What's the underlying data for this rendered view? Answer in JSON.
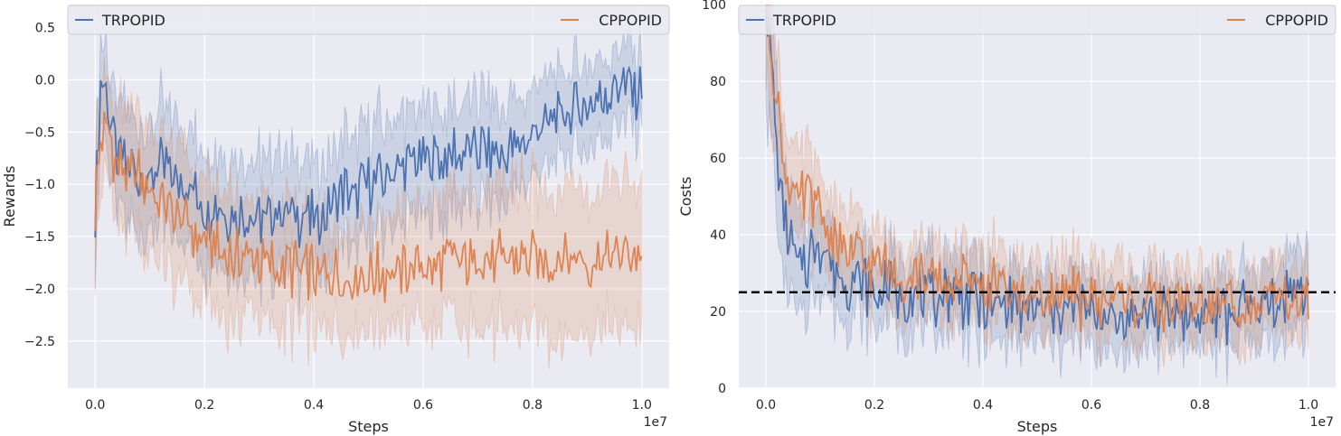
{
  "colors": {
    "trpopid": "#4c72b0",
    "cppopid": "#dd8452",
    "background": "#eaeaf2",
    "grid": "#ffffff",
    "threshold": "#000000"
  },
  "chart_data": [
    {
      "type": "line",
      "xlabel": "Steps",
      "ylabel": "Rewards",
      "x_offset_label": "1e7",
      "xlim": [
        -0.05,
        1.05
      ],
      "ylim": [
        -2.95,
        0.72
      ],
      "xticks": [
        0.0,
        0.2,
        0.4,
        0.6,
        0.8,
        1.0
      ],
      "xtick_labels": [
        "0.0",
        "0.2",
        "0.4",
        "0.6",
        "0.8",
        "1.0"
      ],
      "yticks": [
        -2.5,
        -2.0,
        -1.5,
        -1.0,
        -0.5,
        0.0,
        0.5
      ],
      "ytick_labels": [
        "−2.5",
        "−2.0",
        "−1.5",
        "−1.0",
        "−0.5",
        "0.0",
        "0.5"
      ],
      "grid": true,
      "legend_placement": "top, spanning",
      "x": [
        0.0,
        0.01,
        0.02,
        0.04,
        0.06,
        0.08,
        0.1,
        0.12,
        0.15,
        0.2,
        0.25,
        0.3,
        0.35,
        0.4,
        0.45,
        0.5,
        0.55,
        0.6,
        0.65,
        0.7,
        0.75,
        0.8,
        0.85,
        0.9,
        0.95,
        1.0
      ],
      "series": [
        {
          "name": "TRPOPID",
          "color": "#4c72b0",
          "values": [
            -1.35,
            -0.05,
            -0.15,
            -0.75,
            -0.85,
            -0.9,
            -1.0,
            -0.8,
            -0.95,
            -1.2,
            -1.3,
            -1.35,
            -1.3,
            -1.35,
            -1.1,
            -1.0,
            -0.85,
            -0.75,
            -0.7,
            -0.65,
            -0.7,
            -0.55,
            -0.35,
            -0.25,
            -0.05,
            -0.1
          ],
          "band": [
            0.55,
            0.4,
            0.45,
            0.5,
            0.5,
            0.5,
            0.5,
            0.55,
            0.55,
            0.55,
            0.5,
            0.55,
            0.55,
            0.5,
            0.5,
            0.55,
            0.5,
            0.5,
            0.5,
            0.5,
            0.45,
            0.45,
            0.4,
            0.4,
            0.35,
            0.35
          ]
        },
        {
          "name": "CPPOPID",
          "color": "#dd8452",
          "values": [
            -1.3,
            -0.5,
            -0.45,
            -0.8,
            -0.9,
            -0.95,
            -1.05,
            -1.15,
            -1.3,
            -1.55,
            -1.7,
            -1.75,
            -1.78,
            -1.85,
            -1.9,
            -1.88,
            -1.82,
            -1.8,
            -1.75,
            -1.72,
            -1.75,
            -1.72,
            -1.72,
            -1.7,
            -1.68,
            -1.65
          ],
          "band": [
            0.6,
            0.45,
            0.45,
            0.5,
            0.55,
            0.6,
            0.6,
            0.6,
            0.65,
            0.6,
            0.6,
            0.55,
            0.55,
            0.5,
            0.5,
            0.5,
            0.55,
            0.55,
            0.6,
            0.65,
            0.7,
            0.7,
            0.7,
            0.7,
            0.7,
            0.7
          ]
        }
      ]
    },
    {
      "type": "line",
      "xlabel": "Steps",
      "ylabel": "Costs",
      "x_offset_label": "1e7",
      "xlim": [
        -0.05,
        1.05
      ],
      "ylim": [
        0,
        100
      ],
      "xticks": [
        0.0,
        0.2,
        0.4,
        0.6,
        0.8,
        1.0
      ],
      "xtick_labels": [
        "0.0",
        "0.2",
        "0.4",
        "0.6",
        "0.8",
        "1.0"
      ],
      "yticks": [
        0,
        20,
        40,
        60,
        80,
        100
      ],
      "ytick_labels": [
        "0",
        "20",
        "40",
        "60",
        "80",
        "100"
      ],
      "grid": true,
      "legend_placement": "top, spanning",
      "threshold": 25,
      "x": [
        0.0,
        0.01,
        0.02,
        0.03,
        0.04,
        0.06,
        0.08,
        0.1,
        0.12,
        0.15,
        0.2,
        0.25,
        0.3,
        0.35,
        0.4,
        0.45,
        0.5,
        0.55,
        0.6,
        0.65,
        0.7,
        0.75,
        0.8,
        0.85,
        0.9,
        0.95,
        1.0
      ],
      "series": [
        {
          "name": "TRPOPID",
          "color": "#4c72b0",
          "values": [
            100,
            85,
            60,
            48,
            40,
            30,
            35,
            38,
            32,
            28,
            26,
            24,
            23,
            24,
            22,
            22,
            20,
            21,
            20,
            19,
            20,
            20,
            18,
            19,
            21,
            24,
            26
          ],
          "band": [
            25,
            20,
            18,
            16,
            14,
            12,
            12,
            11,
            10,
            10,
            9,
            9,
            9,
            9,
            9,
            9,
            9,
            9,
            9,
            9,
            9,
            8,
            8,
            9,
            9,
            10,
            10
          ]
        },
        {
          "name": "CPPOPID",
          "color": "#dd8452",
          "values": [
            100,
            90,
            75,
            62,
            55,
            48,
            50,
            45,
            40,
            35,
            32,
            30,
            28,
            28,
            27,
            25,
            24,
            24,
            23,
            23,
            22,
            22,
            21,
            22,
            22,
            23,
            23
          ],
          "band": [
            20,
            16,
            14,
            12,
            12,
            11,
            11,
            10,
            10,
            10,
            9,
            9,
            9,
            9,
            9,
            9,
            9,
            9,
            9,
            9,
            9,
            9,
            9,
            9,
            9,
            9,
            9
          ]
        }
      ]
    }
  ]
}
